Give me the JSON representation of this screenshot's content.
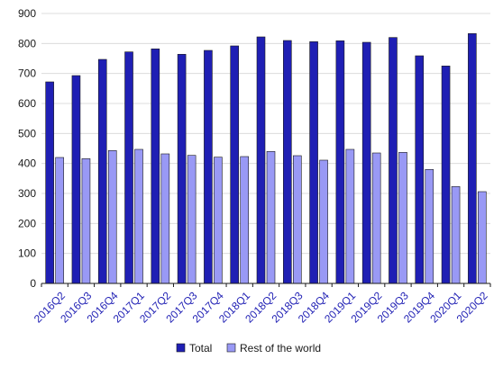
{
  "chart_data": {
    "type": "bar",
    "title": "",
    "xlabel": "",
    "ylabel": "",
    "ylim": [
      0,
      900
    ],
    "yticks": [
      "0",
      "100",
      "200",
      "300",
      "400",
      "500",
      "600",
      "700",
      "800",
      "900"
    ],
    "grid": true,
    "legend_position": "bottom-center",
    "categories": [
      "2016Q2",
      "2016Q3",
      "2016Q4",
      "2017Q1",
      "2017Q2",
      "2017Q3",
      "2017Q4",
      "2018Q1",
      "2018Q2",
      "2018Q3",
      "2018Q4",
      "2019Q1",
      "2019Q2",
      "2019Q3",
      "2019Q4",
      "2020Q1",
      "2020Q2"
    ],
    "series": [
      {
        "name": "Total",
        "color": "#1f1fb4",
        "values": [
          672,
          693,
          747,
          772,
          782,
          764,
          777,
          792,
          822,
          810,
          806,
          809,
          804,
          820,
          759,
          725,
          833
        ]
      },
      {
        "name": "Rest of the world",
        "color": "#9999f5",
        "values": [
          420,
          416,
          443,
          447,
          432,
          427,
          421,
          423,
          440,
          426,
          411,
          447,
          435,
          437,
          380,
          323,
          306
        ]
      }
    ]
  }
}
